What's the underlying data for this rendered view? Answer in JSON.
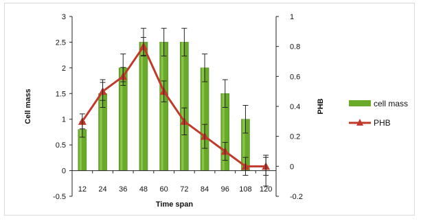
{
  "chart_data": {
    "type": "bar+line",
    "title": "",
    "xlabel": "Time span",
    "ylabel": "Cell mass",
    "y2label": "PHB",
    "categories": [
      "12",
      "24",
      "36",
      "48",
      "60",
      "72",
      "84",
      "96",
      "108",
      "120"
    ],
    "ylim": [
      -0.5,
      3
    ],
    "yticks": [
      "3",
      "2.5",
      "2",
      "1.5",
      "1",
      "0.5",
      "0",
      "-0.5"
    ],
    "y2lim": [
      -0.2,
      1
    ],
    "y2ticks": [
      "1",
      "0.8",
      "0.6",
      "0.4",
      "0.2",
      "0",
      "-0.2"
    ],
    "series": [
      {
        "name": "cell mass",
        "type": "bar",
        "axis": "left",
        "color": "#6aaa2a",
        "values": [
          0.8,
          1.5,
          2.0,
          2.5,
          2.5,
          2.5,
          2.0,
          1.5,
          1.0,
          0
        ],
        "errors": [
          0.15,
          0.27,
          0.27,
          0.27,
          0.27,
          0.27,
          0.27,
          0.27,
          0.27,
          0.3
        ]
      },
      {
        "name": "PHB",
        "type": "line",
        "axis": "right",
        "color": "#c0392b",
        "marker": "triangle",
        "values": [
          0.3,
          0.5,
          0.6,
          0.8,
          0.5,
          0.3,
          0.2,
          0.1,
          0,
          0
        ],
        "errors": [
          0.05,
          0.06,
          0.06,
          0.06,
          0.07,
          0.09,
          0.08,
          0.06,
          0.06,
          0.06
        ]
      }
    ],
    "legend": {
      "position": "right",
      "items": [
        "cell mass",
        "PHB"
      ]
    },
    "grid": false
  }
}
